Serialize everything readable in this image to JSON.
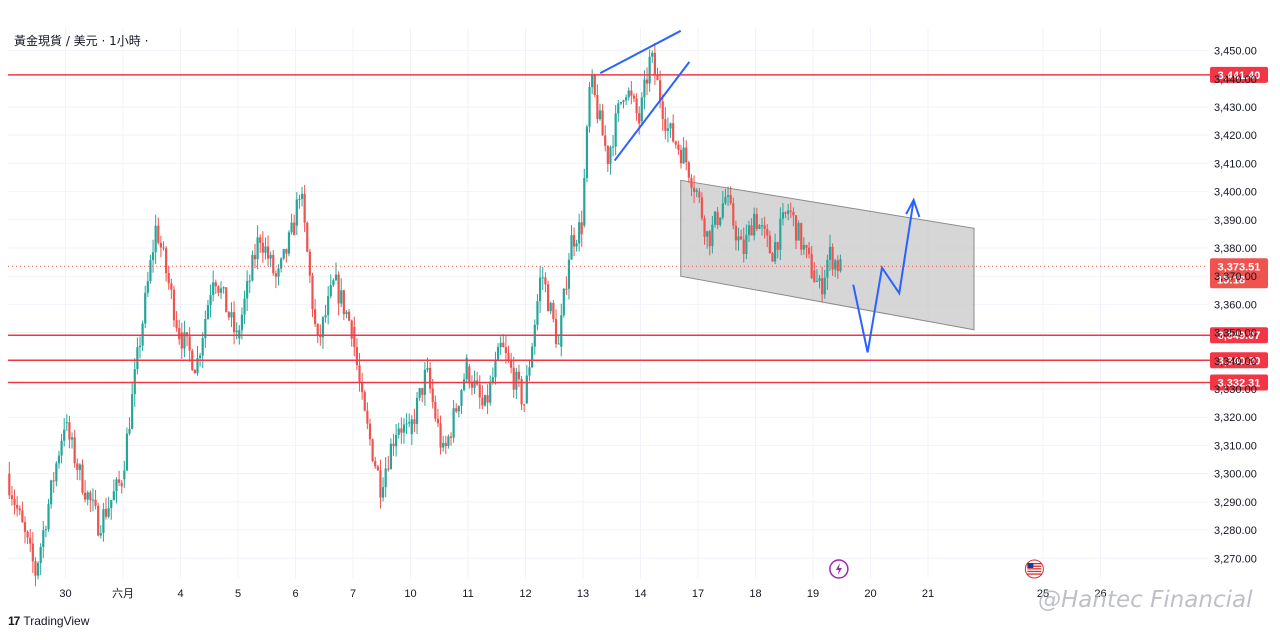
{
  "header": {
    "symbol_label": "黃金現貨 / 美元 · 1小時 ·"
  },
  "brand": {
    "logo": "17",
    "name": "TradingView"
  },
  "watermark": "@Hantec Financial",
  "colors": {
    "up": "#26a69a",
    "down": "#ef5350",
    "level": "#f23645",
    "forecast": "#2962ff",
    "channel_fill": "#c8c8c8"
  },
  "icons": {
    "event_bolt": "bolt-icon",
    "us_flag": "us-flag-icon"
  },
  "chart_data": {
    "type": "candlestick",
    "title": "黃金現貨 / 美元 · 1小時",
    "ylim": [
      3263,
      3458
    ],
    "y_ticks": [
      3270,
      3280,
      3290,
      3300,
      3310,
      3320,
      3330,
      3340,
      3350,
      3360,
      3370,
      3380,
      3390,
      3400,
      3410,
      3420,
      3430,
      3440,
      3450
    ],
    "y_tick_labels": [
      "3,270.00",
      "3,280.00",
      "3,290.00",
      "3,300.00",
      "3,310.00",
      "3,320.00",
      "3,330.00",
      "3,340.00",
      "3,350.00",
      "3,360.00",
      "3,370.00",
      "3,380.00",
      "3,390.00",
      "3,400.00",
      "3,410.00",
      "3,420.00",
      "3,430.00",
      "3,440.00",
      "3,450.00"
    ],
    "x_ticks": [
      {
        "label": "30",
        "day": 1
      },
      {
        "label": "六月",
        "day": 2
      },
      {
        "label": "4",
        "day": 3
      },
      {
        "label": "5",
        "day": 4
      },
      {
        "label": "6",
        "day": 5
      },
      {
        "label": "7",
        "day": 6
      },
      {
        "label": "10",
        "day": 7
      },
      {
        "label": "11",
        "day": 8
      },
      {
        "label": "12",
        "day": 9
      },
      {
        "label": "13",
        "day": 10
      },
      {
        "label": "14",
        "day": 11
      },
      {
        "label": "17",
        "day": 12
      },
      {
        "label": "18",
        "day": 13
      },
      {
        "label": "19",
        "day": 14
      },
      {
        "label": "20",
        "day": 15
      },
      {
        "label": "21",
        "day": 16
      },
      {
        "label": "25",
        "day": 18
      },
      {
        "label": "26",
        "day": 19
      }
    ],
    "current_price": {
      "value": 3373.51,
      "label": "3,373.51",
      "countdown": "15:18"
    },
    "levels": [
      {
        "value": 3441.4,
        "label": "3,441.40"
      },
      {
        "value": 3349.07,
        "label": "3,349.07"
      },
      {
        "value": 3340.2,
        "label": "3,340.20"
      },
      {
        "value": 3332.31,
        "label": "3,332.31"
      }
    ],
    "segments": [
      {
        "from_day": 0,
        "to_day": 1,
        "start": 3300,
        "points": [
          [
            0.5,
            3265
          ],
          [
            1,
            3318
          ]
        ]
      },
      {
        "from_day": 1,
        "to_day": 2,
        "start": 3318,
        "points": [
          [
            0.3,
            3298
          ],
          [
            0.6,
            3282
          ],
          [
            1,
            3298
          ]
        ]
      },
      {
        "from_day": 2,
        "to_day": 3,
        "start": 3298,
        "points": [
          [
            0.3,
            3345
          ],
          [
            0.6,
            3388
          ],
          [
            1,
            3350
          ]
        ]
      },
      {
        "from_day": 3,
        "to_day": 4,
        "start": 3350,
        "points": [
          [
            0.3,
            3338
          ],
          [
            0.6,
            3372
          ],
          [
            1,
            3348
          ]
        ]
      },
      {
        "from_day": 4,
        "to_day": 5,
        "start": 3348,
        "points": [
          [
            0.4,
            3385
          ],
          [
            0.7,
            3368
          ],
          [
            1,
            3388
          ]
        ]
      },
      {
        "from_day": 5,
        "to_day": 6,
        "start": 3388,
        "points": [
          [
            0.1,
            3402
          ],
          [
            0.4,
            3345
          ],
          [
            0.7,
            3368
          ],
          [
            1,
            3352
          ]
        ]
      },
      {
        "from_day": 6,
        "to_day": 7,
        "start": 3352,
        "points": [
          [
            0.2,
            3322
          ],
          [
            0.5,
            3296
          ],
          [
            0.8,
            3318
          ],
          [
            1,
            3314
          ]
        ]
      },
      {
        "from_day": 7,
        "to_day": 8,
        "start": 3314,
        "points": [
          [
            0.3,
            3336
          ],
          [
            0.6,
            3306
          ],
          [
            1,
            3338
          ]
        ]
      },
      {
        "from_day": 8,
        "to_day": 9,
        "start": 3338,
        "points": [
          [
            0.3,
            3322
          ],
          [
            0.6,
            3345
          ],
          [
            1,
            3325
          ]
        ]
      },
      {
        "from_day": 9,
        "to_day": 9.6,
        "start": 3325,
        "points": [
          [
            0.5,
            3372
          ],
          [
            1,
            3345
          ]
        ]
      },
      {
        "from_day": 9.6,
        "to_day": 10,
        "start": 3345,
        "points": [
          [
            0.5,
            3382
          ],
          [
            1,
            3388
          ]
        ]
      },
      {
        "from_day": 10,
        "to_day": 11,
        "start": 3388,
        "points": [
          [
            0.15,
            3440
          ],
          [
            0.45,
            3412
          ],
          [
            0.75,
            3438
          ],
          [
            1,
            3425
          ]
        ]
      },
      {
        "from_day": 11,
        "to_day": 12,
        "start": 3425,
        "points": [
          [
            0.2,
            3448
          ],
          [
            0.5,
            3422
          ],
          [
            0.8,
            3412
          ],
          [
            1,
            3400
          ]
        ]
      },
      {
        "from_day": 12,
        "to_day": 13,
        "start": 3400,
        "points": [
          [
            0.2,
            3383
          ],
          [
            0.5,
            3398
          ],
          [
            0.8,
            3378
          ],
          [
            1,
            3392
          ]
        ]
      },
      {
        "from_day": 13,
        "to_day": 14,
        "start": 3392,
        "points": [
          [
            0.3,
            3378
          ],
          [
            0.6,
            3394
          ],
          [
            1,
            3372
          ]
        ]
      },
      {
        "from_day": 14,
        "to_day": 14.5,
        "start": 3372,
        "points": [
          [
            0.3,
            3365
          ],
          [
            0.6,
            3378
          ],
          [
            1,
            3373
          ]
        ]
      }
    ],
    "annotations": {
      "wedge_upper": [
        [
          10.3,
          3442
        ],
        [
          11.7,
          3457
        ]
      ],
      "wedge_lower": [
        [
          10.55,
          3411
        ],
        [
          11.85,
          3446
        ]
      ],
      "channel": {
        "top": [
          [
            11.7,
            3404
          ],
          [
            16.8,
            3387
          ]
        ],
        "bottom": [
          [
            11.7,
            3370
          ],
          [
            16.8,
            3351
          ]
        ]
      },
      "forecast_path": [
        [
          14.7,
          3367
        ],
        [
          14.95,
          3343
        ],
        [
          15.2,
          3373
        ],
        [
          15.5,
          3364
        ],
        [
          15.75,
          3397
        ]
      ],
      "forecast_arrow_head": [
        [
          15.62,
          3392
        ],
        [
          15.75,
          3397
        ],
        [
          15.85,
          3391
        ]
      ],
      "bolt_event_day": 14.45,
      "us_flag_day": 17.85
    }
  }
}
